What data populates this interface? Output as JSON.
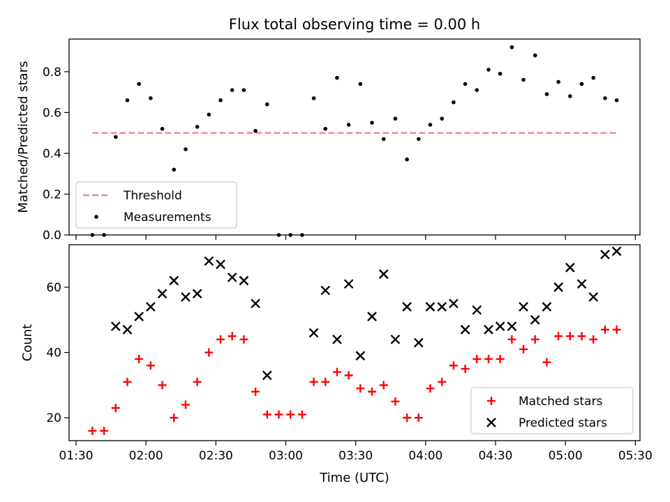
{
  "figure_title": "Flux total observing time = 0.00 h",
  "xlabel": "Time (UTC)",
  "chart_data": [
    {
      "type": "scatter",
      "ylabel": "Matched/Predicted stars",
      "ylim": [
        0.0,
        0.96
      ],
      "yticks": [
        0.0,
        0.2,
        0.4,
        0.6,
        0.8
      ],
      "ytick_labels": [
        "0.0",
        "0.2",
        "0.4",
        "0.6",
        "0.8"
      ],
      "xlim": [
        "01:27",
        "05:32"
      ],
      "xticks": [
        "01:30",
        "02:00",
        "02:30",
        "03:00",
        "03:30",
        "04:00",
        "04:30",
        "05:00",
        "05:30"
      ],
      "threshold": {
        "name": "Threshold",
        "value": 0.5,
        "x": [
          "01:37",
          "05:22"
        ],
        "color": "#f08080",
        "style": "dashed"
      },
      "series": [
        {
          "name": "Measurements",
          "marker": "dot",
          "color": "#000000",
          "x": [
            "01:37",
            "01:42",
            "01:47",
            "01:52",
            "01:57",
            "02:02",
            "02:07",
            "02:12",
            "02:17",
            "02:22",
            "02:27",
            "02:32",
            "02:37",
            "02:42",
            "02:47",
            "02:52",
            "02:57",
            "03:02",
            "03:07",
            "03:12",
            "03:17",
            "03:22",
            "03:27",
            "03:32",
            "03:37",
            "03:42",
            "03:47",
            "03:52",
            "03:57",
            "04:02",
            "04:07",
            "04:12",
            "04:17",
            "04:22",
            "04:27",
            "04:32",
            "04:37",
            "04:42",
            "04:47",
            "04:52",
            "04:57",
            "05:02",
            "05:07",
            "05:12",
            "05:17",
            "05:22"
          ],
          "y": [
            0.0,
            0.0,
            0.48,
            0.66,
            0.74,
            0.67,
            0.52,
            0.32,
            0.42,
            0.53,
            0.59,
            0.66,
            0.71,
            0.71,
            0.51,
            0.64,
            0.0,
            0.0,
            0.0,
            0.67,
            0.52,
            0.77,
            0.54,
            0.74,
            0.55,
            0.47,
            0.57,
            0.37,
            0.47,
            0.54,
            0.57,
            0.65,
            0.74,
            0.71,
            0.81,
            0.79,
            0.92,
            0.76,
            0.88,
            0.69,
            0.75,
            0.68,
            0.74,
            0.77,
            0.67,
            0.66
          ]
        }
      ],
      "legend": {
        "placement": "lower-left",
        "entries": [
          "Threshold",
          "Measurements"
        ]
      },
      "grid": false
    },
    {
      "type": "scatter",
      "ylabel": "Count",
      "ylim": [
        13,
        73
      ],
      "yticks": [
        20,
        40,
        60
      ],
      "ytick_labels": [
        "20",
        "40",
        "60"
      ],
      "xlim": [
        "01:27",
        "05:32"
      ],
      "xticks": [
        "01:30",
        "02:00",
        "02:30",
        "03:00",
        "03:30",
        "04:00",
        "04:30",
        "05:00",
        "05:30"
      ],
      "xtick_labels": [
        "01:30",
        "02:00",
        "02:30",
        "03:00",
        "03:30",
        "04:00",
        "04:30",
        "05:00",
        "05:30"
      ],
      "series": [
        {
          "name": "Matched stars",
          "marker": "plus",
          "color": "#ff0000",
          "x": [
            "01:37",
            "01:42",
            "01:47",
            "01:52",
            "01:57",
            "02:02",
            "02:07",
            "02:12",
            "02:17",
            "02:22",
            "02:27",
            "02:32",
            "02:37",
            "02:42",
            "02:47",
            "02:52",
            "02:57",
            "03:02",
            "03:07",
            "03:12",
            "03:17",
            "03:22",
            "03:27",
            "03:32",
            "03:37",
            "03:42",
            "03:47",
            "03:52",
            "03:57",
            "04:02",
            "04:07",
            "04:12",
            "04:17",
            "04:22",
            "04:27",
            "04:32",
            "04:37",
            "04:42",
            "04:47",
            "04:52",
            "04:57",
            "05:02",
            "05:07",
            "05:12",
            "05:17",
            "05:22"
          ],
          "y": [
            16,
            16,
            23,
            31,
            38,
            36,
            30,
            20,
            24,
            31,
            40,
            44,
            45,
            44,
            28,
            21,
            21,
            21,
            21,
            31,
            31,
            34,
            33,
            29,
            28,
            30,
            25,
            20,
            20,
            29,
            31,
            36,
            35,
            38,
            38,
            38,
            44,
            41,
            44,
            37,
            45,
            45,
            45,
            44,
            47,
            47
          ]
        },
        {
          "name": "Predicted stars",
          "marker": "x",
          "color": "#000000",
          "x": [
            "01:47",
            "01:52",
            "01:57",
            "02:02",
            "02:07",
            "02:12",
            "02:17",
            "02:22",
            "02:27",
            "02:32",
            "02:37",
            "02:42",
            "02:47",
            "02:52",
            "03:12",
            "03:17",
            "03:22",
            "03:27",
            "03:32",
            "03:37",
            "03:42",
            "03:47",
            "03:52",
            "03:57",
            "04:02",
            "04:07",
            "04:12",
            "04:17",
            "04:22",
            "04:27",
            "04:32",
            "04:37",
            "04:42",
            "04:47",
            "04:52",
            "04:57",
            "05:02",
            "05:07",
            "05:12",
            "05:17",
            "05:22"
          ],
          "y": [
            48,
            47,
            51,
            54,
            58,
            62,
            57,
            58,
            68,
            67,
            63,
            62,
            55,
            33,
            46,
            59,
            44,
            61,
            39,
            51,
            64,
            44,
            54,
            43,
            54,
            54,
            55,
            47,
            53,
            47,
            48,
            48,
            54,
            50,
            54,
            60,
            66,
            61,
            57,
            70,
            71
          ]
        }
      ],
      "legend": {
        "placement": "lower-right",
        "entries": [
          "Matched stars",
          "Predicted stars"
        ]
      },
      "grid": false
    }
  ]
}
